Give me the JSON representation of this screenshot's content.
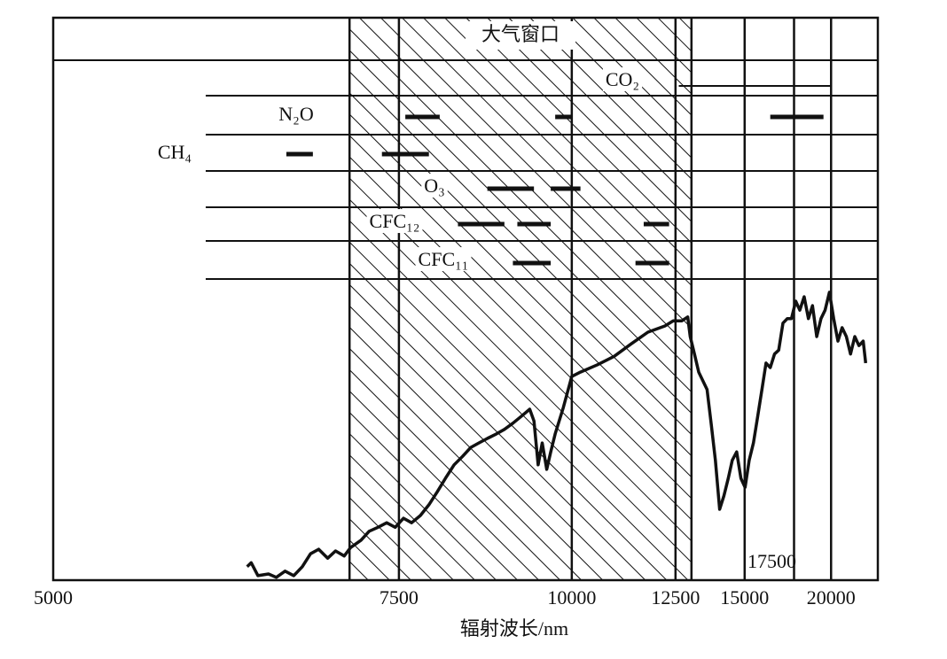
{
  "chart_data": {
    "type": "line",
    "x_label": "辐射波长/nm",
    "window": {
      "label": "大气窗口",
      "range": [
        7000,
        13000
      ]
    },
    "xlim": [
      5000,
      24400
    ],
    "xscale": "reciprocal",
    "xticks": [
      5000,
      7500,
      10000,
      12500,
      15000,
      20000
    ],
    "inner_tick_labels": [
      17500
    ],
    "vlines": [
      7000,
      7500,
      10000,
      12500,
      13000,
      15000,
      17500,
      20000
    ],
    "ylim": [
      0,
      100
    ],
    "color": "#111111",
    "gases": [
      {
        "name": "CO₂",
        "bands": [
          [
            12600,
            20000
          ]
        ]
      },
      {
        "name": "N₂O",
        "bands": [
          [
            7570,
            7970
          ],
          [
            9690,
            10000
          ],
          [
            16200,
            19430
          ]
        ]
      },
      {
        "name": "CH₄",
        "bands": [
          [
            6450,
            6670
          ],
          [
            7320,
            7840
          ]
        ]
      },
      {
        "name": "O₃",
        "bands": [
          [
            8600,
            9320
          ],
          [
            9610,
            10170
          ]
        ]
      },
      {
        "name": "CFC₁₂",
        "bands": [
          [
            8200,
            8850
          ],
          [
            9050,
            9610
          ],
          [
            11610,
            12310
          ]
        ]
      },
      {
        "name": "CFC₁₁",
        "bands": [
          [
            8980,
            9610
          ],
          [
            11400,
            12310
          ]
        ]
      }
    ],
    "x": [
      6150,
      6180,
      6230,
      6310,
      6370,
      6440,
      6510,
      6580,
      6650,
      6720,
      6800,
      6870,
      6950,
      7010,
      7110,
      7190,
      7280,
      7370,
      7460,
      7550,
      7640,
      7740,
      7840,
      7940,
      8040,
      8150,
      8260,
      8370,
      8480,
      8600,
      8730,
      8850,
      8980,
      9110,
      9250,
      9320,
      9390,
      9460,
      9540,
      9610,
      9690,
      9840,
      10000,
      10170,
      10520,
      10890,
      11290,
      11720,
      12190,
      12430,
      12690,
      12880,
      12960,
      13100,
      13240,
      13530,
      13680,
      13830,
      13990,
      14150,
      14320,
      14480,
      14660,
      14840,
      15020,
      15200,
      15390,
      15590,
      15790,
      15990,
      16200,
      16420,
      16640,
      16870,
      17110,
      17350,
      17600,
      17850,
      18120,
      18390,
      18660,
      18950,
      19250,
      19550,
      19870,
      20200,
      20540,
      20890,
      21250,
      21620,
      22010,
      22410,
      22830,
      23080
    ],
    "values": [
      2.4,
      3.1,
      0.8,
      1.1,
      0.5,
      1.6,
      0.8,
      2.4,
      4.7,
      5.5,
      3.9,
      5.2,
      4.3,
      5.8,
      7.1,
      8.7,
      9.4,
      10.2,
      9.4,
      11.0,
      10.2,
      11.5,
      13.4,
      15.7,
      18.1,
      20.5,
      22.0,
      23.6,
      24.4,
      25.2,
      26.0,
      26.8,
      27.9,
      29.1,
      30.4,
      28.3,
      20.5,
      24.4,
      19.7,
      22.8,
      26.0,
      30.7,
      36.2,
      37.0,
      38.3,
      39.8,
      42.0,
      44.1,
      45.2,
      46.1,
      46.1,
      46.8,
      43.3,
      40.2,
      37.0,
      33.9,
      27.6,
      21.3,
      12.6,
      15.0,
      18.1,
      21.3,
      22.8,
      18.1,
      16.5,
      21.3,
      24.4,
      29.1,
      33.9,
      38.6,
      37.8,
      40.2,
      40.9,
      45.7,
      46.5,
      46.5,
      49.6,
      48.0,
      50.4,
      46.5,
      48.8,
      43.3,
      46.5,
      48.0,
      51.2,
      46.5,
      42.5,
      44.9,
      43.3,
      40.2,
      43.3,
      41.7,
      42.5,
      38.6
    ]
  }
}
